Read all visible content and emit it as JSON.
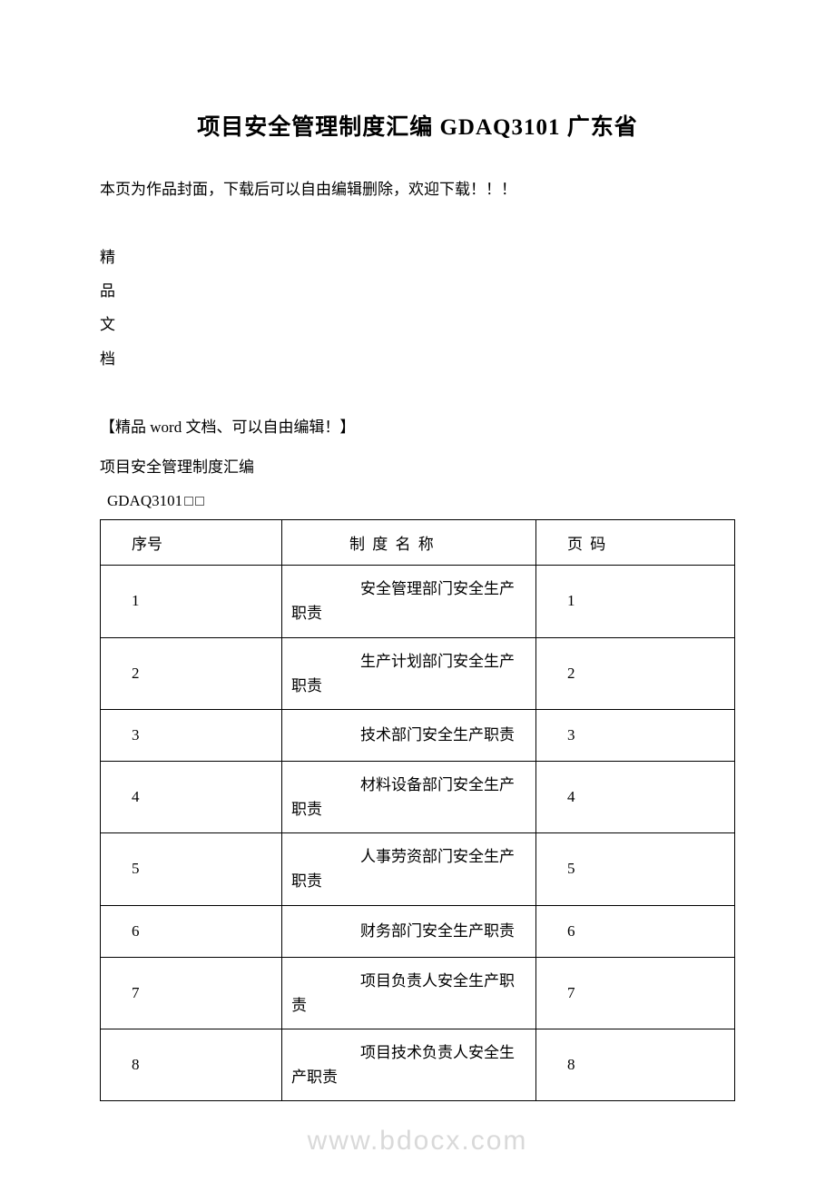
{
  "title": "项目安全管理制度汇编 GDAQ3101 广东省",
  "cover_text": "本页为作品封面，下载后可以自由编辑删除，欢迎下载！！！",
  "vertical_chars": [
    "精",
    "品",
    "文",
    "档"
  ],
  "edit_note": "【精品 word 文档、可以自由编辑！】",
  "subtitle": "项目安全管理制度汇编",
  "code": "GDAQ3101",
  "watermark": "www.bdocx.com",
  "table": {
    "headers": {
      "seq": "序号",
      "name": "制 度 名 称",
      "page": "页 码"
    },
    "rows": [
      {
        "seq": "1",
        "name": "安全管理部门安全生产职责",
        "page": "1"
      },
      {
        "seq": "2",
        "name": "生产计划部门安全生产职责",
        "page": "2"
      },
      {
        "seq": "3",
        "name": "技术部门安全生产职责",
        "page": "3"
      },
      {
        "seq": "4",
        "name": "材料设备部门安全生产职责",
        "page": "4"
      },
      {
        "seq": "5",
        "name": "人事劳资部门安全生产职责",
        "page": "5"
      },
      {
        "seq": "6",
        "name": "财务部门安全生产职责",
        "page": "6"
      },
      {
        "seq": "7",
        "name": "项目负责人安全生产职责",
        "page": "7"
      },
      {
        "seq": "8",
        "name": "项目技术负责人安全生产职责",
        "page": "8"
      }
    ]
  },
  "styling": {
    "page_bg": "#ffffff",
    "text_color": "#000000",
    "border_color": "#000000",
    "watermark_color": "rgba(180,180,180,0.5)",
    "title_fontsize": 25,
    "body_fontsize": 17,
    "font_family": "SimSun"
  }
}
